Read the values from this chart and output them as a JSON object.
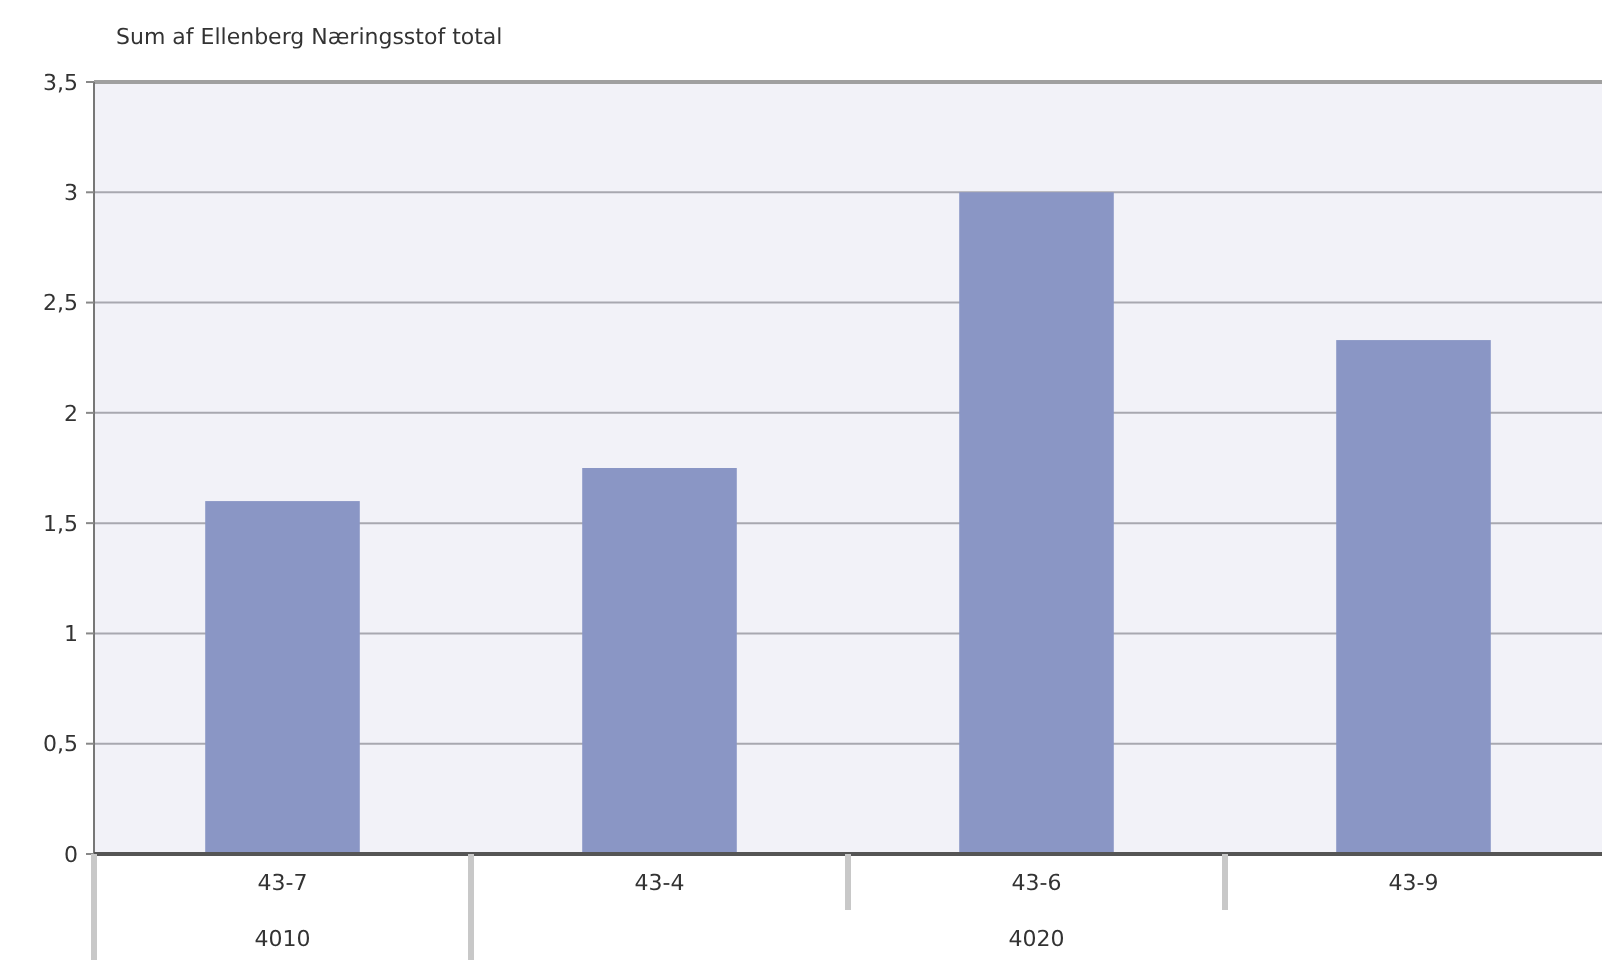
{
  "chart_data": {
    "type": "bar",
    "title": "Sum af Ellenberg Næringsstof total",
    "categories": [
      "43-7",
      "43-4",
      "43-6",
      "43-9"
    ],
    "values": [
      1.6,
      1.75,
      3,
      2.33
    ],
    "color": "#8a96c5",
    "ylim": [
      0,
      3.5
    ],
    "yticks": [
      0,
      {
        "value": 0.5,
        "label": "0,5"
      },
      1,
      {
        "value": 1.5,
        "label": "1,5"
      },
      2,
      {
        "value": 2.5,
        "label": "2,5"
      },
      3,
      {
        "value": 3.5,
        "label": "3,5"
      }
    ],
    "grid": "y",
    "annotations": [
      "4010",
      "4020"
    ]
  }
}
